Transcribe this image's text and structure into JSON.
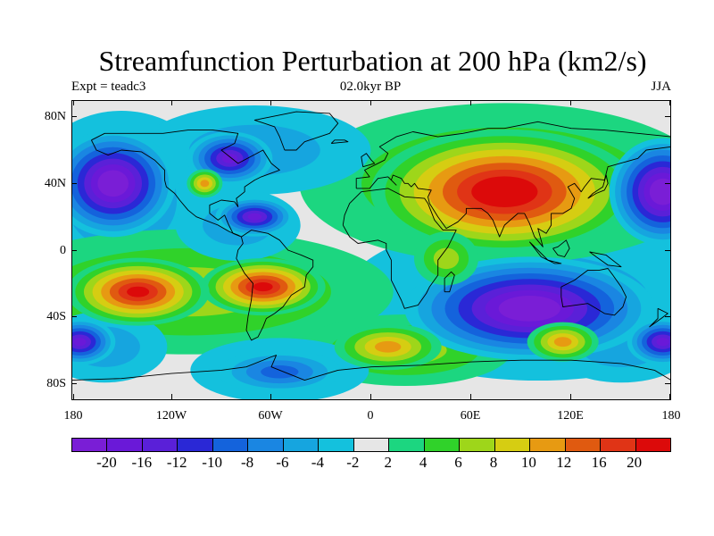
{
  "title": "Streamfunction Perturbation at 200 hPa (km2/s)",
  "left_string": "Expt = teadc3",
  "center_string": "02.0kyr BP",
  "right_string": "JJA",
  "lat_labels": [
    "80N",
    "40N",
    "0",
    "40S",
    "80S"
  ],
  "lon_labels": [
    "180",
    "120W",
    "60W",
    "0",
    "60E",
    "120E",
    "180"
  ],
  "colorbar": {
    "labels": [
      "-20",
      "-16",
      "-12",
      "-10",
      "-8",
      "-6",
      "-4",
      "-2",
      "2",
      "4",
      "6",
      "8",
      "10",
      "12",
      "16",
      "20"
    ],
    "colors": [
      "#7a1ed6",
      "#6a19d8",
      "#5a20d8",
      "#2a28d6",
      "#1463dc",
      "#1a86e2",
      "#16a5df",
      "#14c1dd",
      "#e6e6e6",
      "#1cd680",
      "#30d22a",
      "#9ed61a",
      "#d6cd12",
      "#e79a12",
      "#e05a10",
      "#e03416",
      "#dc0a0a"
    ]
  },
  "map_data": {
    "type": "filled-contour",
    "variable": "Streamfunction Perturbation at 200 hPa",
    "units": "km2/s",
    "season": "JJA",
    "lon_range": [
      -180,
      180
    ],
    "lat_range": [
      -90,
      90
    ],
    "features": [
      {
        "label": "Asian high",
        "lon": 80,
        "lat": 35,
        "value": 20
      },
      {
        "label": "Southern Indian Ocean low",
        "lon": 95,
        "lat": -35,
        "value": -20
      },
      {
        "label": "North Pacific low",
        "lon": -155,
        "lat": 40,
        "value": -20
      },
      {
        "label": "Western Pacific low",
        "lon": 175,
        "lat": 35,
        "value": -20
      },
      {
        "label": "Hudson Bay low",
        "lon": -85,
        "lat": 55,
        "value": -16
      },
      {
        "label": "Caribbean low",
        "lon": -70,
        "lat": 20,
        "value": -16
      },
      {
        "label": "South American high",
        "lon": -65,
        "lat": -22,
        "value": 16
      },
      {
        "label": "South Pacific high",
        "lon": -140,
        "lat": -25,
        "value": 16
      },
      {
        "label": "Southern Ocean low",
        "lon": -175,
        "lat": -55,
        "value": -16
      },
      {
        "label": "Southern Ocean low E",
        "lon": 175,
        "lat": -55,
        "value": -16
      },
      {
        "label": "Antarctic low",
        "lon": -55,
        "lat": -73,
        "value": -8
      },
      {
        "label": "North America small high",
        "lon": -100,
        "lat": 40,
        "value": 8
      },
      {
        "label": "Southern ocean high",
        "lon": 10,
        "lat": -58,
        "value": 8
      },
      {
        "label": "Southern ocean high E",
        "lon": 115,
        "lat": -55,
        "value": 8
      },
      {
        "label": "Africa weak high",
        "lon": 45,
        "lat": -5,
        "value": 4
      }
    ]
  }
}
